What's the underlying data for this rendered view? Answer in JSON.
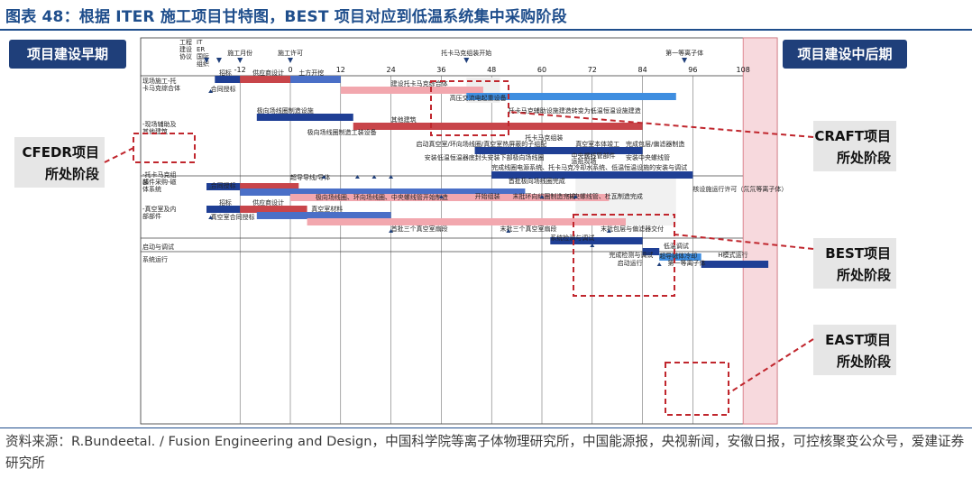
{
  "figure": {
    "title": "图表 48：根据 ITER 施工项目甘特图，BEST 项目对应到低温系统集中采购阶段",
    "source": "资料来源：R.Bundeetal. / Fusion Engineering and Design，中国科学院等离子体物理研究所，中国能源报，央视新闻，安徽日报，可控核聚变公众号，爱建证券研究所"
  },
  "chart_data": {
    "type": "gantt",
    "x_ticks": [
      -12,
      0,
      12,
      24,
      36,
      48,
      60,
      72,
      84,
      96,
      108
    ],
    "xlim": [
      -24,
      114
    ],
    "milestones_top": [
      {
        "label": "施工月份",
        "x": -12
      },
      {
        "label": "施工许可",
        "x": 0
      },
      {
        "label": "托卡马克组装开始",
        "x": 42
      },
      {
        "label": "第一等离子体",
        "x": 94
      }
    ],
    "top_left_headers": [
      "工程建设协议",
      "ITER国际组织"
    ],
    "phases": [
      "项目建设早期",
      "项目建设中后期"
    ],
    "sections": [
      {
        "label": "现场施工-托卡马克综合体"
      },
      {
        "label": "-现场辅助及其他建筑"
      },
      {
        "label": "-托卡马克组装"
      },
      {
        "label": "部件采购-磁体系统"
      },
      {
        "label": "-真空室及内部部件"
      },
      {
        "label": "启动与调试"
      },
      {
        "label": "系统运行"
      }
    ],
    "bars": [
      {
        "row": 0,
        "start": -18,
        "end": -12,
        "color": "navy"
      },
      {
        "row": 0,
        "start": -12,
        "end": 0,
        "color": "red"
      },
      {
        "row": 0,
        "start": 0,
        "end": 12,
        "color": "blue"
      },
      {
        "row": 0,
        "start": 12,
        "end": 46,
        "color": "pink"
      },
      {
        "row": 0,
        "start": 42,
        "end": 92,
        "color": "lightblue"
      },
      {
        "row": 1,
        "start": -8,
        "end": 15,
        "color": "navy"
      },
      {
        "row": 1,
        "start": 15,
        "end": 84,
        "color": "red"
      },
      {
        "row": 2,
        "start": 44,
        "end": 84,
        "color": "navy"
      },
      {
        "row": 3,
        "start": 48,
        "end": 96,
        "color": "navy"
      },
      {
        "row": 4,
        "start": -20,
        "end": -12,
        "color": "navy"
      },
      {
        "row": 4,
        "start": -12,
        "end": 2,
        "color": "red"
      },
      {
        "row": 4,
        "start": -12,
        "end": 56,
        "color": "blue"
      },
      {
        "row": 4,
        "start": 0,
        "end": 76,
        "color": "pink"
      },
      {
        "row": 5,
        "start": -20,
        "end": -12,
        "color": "navy"
      },
      {
        "row": 5,
        "start": -12,
        "end": 4,
        "color": "red"
      },
      {
        "row": 5,
        "start": -8,
        "end": 24,
        "color": "blue"
      },
      {
        "row": 5,
        "start": 4,
        "end": 80,
        "color": "pink"
      },
      {
        "row": 6,
        "start": 62,
        "end": 84,
        "color": "navy"
      },
      {
        "row": 7,
        "start": 84,
        "end": 88,
        "color": "navy"
      },
      {
        "row": 7,
        "start": 88,
        "end": 98,
        "color": "lightblue"
      },
      {
        "row": 8,
        "start": 98,
        "end": 114,
        "color": "navy"
      }
    ],
    "annotations": [
      {
        "text": "招标",
        "x": -17,
        "row": 0
      },
      {
        "text": "供应商设计",
        "x": -9,
        "row": 0
      },
      {
        "text": "土方开挖",
        "x": 2,
        "row": 0
      },
      {
        "text": "合同授标",
        "x": -19,
        "row": 0.9
      },
      {
        "text": "建设托卡马克综合体",
        "x": 24,
        "row": 0.6
      },
      {
        "text": "高压交流电起重设备",
        "x": 38,
        "row": 1.4
      },
      {
        "text": "极向场线圈制造设施",
        "x": -8,
        "row": 2.1
      },
      {
        "text": "托卡马克辅助设施建造转变为低温恒温设施建造",
        "x": 52,
        "row": 2.1
      },
      {
        "text": "其他建筑",
        "x": 24,
        "row": 2.6
      },
      {
        "text": "极向场线圈制造工装设备",
        "x": 4,
        "row": 3.3
      },
      {
        "text": "托卡马克组装",
        "x": 56,
        "row": 3.6
      },
      {
        "text": "启动真空室/环向场线圈/真空室热屏蔽的子组配",
        "x": 30,
        "row": 3.95
      },
      {
        "text": "真空室本体竣工",
        "x": 68,
        "row": 3.95
      },
      {
        "text": "完成包层/偏滤器制造",
        "x": 80,
        "row": 3.95
      },
      {
        "text": "安装低温恒温器底封头",
        "x": 32,
        "row": 4.7
      },
      {
        "text": "安装下部极向场线圈",
        "x": 47,
        "row": 4.7
      },
      {
        "text": "中央螺线管部件",
        "x": 67,
        "row": 4.6
      },
      {
        "text": "运抵现场",
        "x": 67,
        "row": 4.9
      },
      {
        "text": "安装中央螺线管",
        "x": 80,
        "row": 4.7
      },
      {
        "text": "完成线圈电源系统、托卡马克冷却水系统、低温恒温设施的安装与调试",
        "x": 48,
        "row": 5.25
      },
      {
        "text": "超导导线/导体",
        "x": 0,
        "row": 5.8
      },
      {
        "text": "首批极向场线圈完成",
        "x": 52,
        "row": 6.0
      },
      {
        "text": "合同授标",
        "x": -19,
        "row": 6.25
      },
      {
        "text": "核设施运行许可（氘氘等离子体）",
        "x": 96,
        "row": 6.45
      },
      {
        "text": "极向场线圈、环向场线圈、中央螺线管开始制造",
        "x": 6,
        "row": 6.9
      },
      {
        "text": "开始组装",
        "x": 44,
        "row": 6.85
      },
      {
        "text": "末批环向线圈制造完成",
        "x": 53,
        "row": 6.85
      },
      {
        "text": "中央螺线管、杜瓦制造完成",
        "x": 66,
        "row": 6.85
      },
      {
        "text": "招标",
        "x": -17,
        "row": 7.2
      },
      {
        "text": "供应商设计",
        "x": -9,
        "row": 7.2
      },
      {
        "text": "真空室材料",
        "x": 5,
        "row": 7.55
      },
      {
        "text": "真空室合同授标",
        "x": -19,
        "row": 8.0
      },
      {
        "text": "首批三个真空室扇段",
        "x": 24,
        "row": 8.65
      },
      {
        "text": "末批三个真空室扇段",
        "x": 50,
        "row": 8.65
      },
      {
        "text": "末批包层与偏滤器交付",
        "x": 74,
        "row": 8.65
      },
      {
        "text": "系统检测与调试",
        "x": 62,
        "row": 9.15
      },
      {
        "text": "低温调试",
        "x": 89,
        "row": 9.6
      },
      {
        "text": "完成检测与调试",
        "x": 76,
        "row": 10.1
      },
      {
        "text": "超导磁体冷却",
        "x": 88,
        "row": 10.15
      },
      {
        "text": "H模式运行",
        "x": 102,
        "row": 10.1
      },
      {
        "text": "启动运行",
        "x": 78,
        "row": 10.55
      },
      {
        "text": "第一等离子体",
        "x": 90,
        "row": 10.55
      }
    ]
  },
  "callouts": [
    {
      "label": "CFEDR项目所处阶段"
    },
    {
      "label": "CRAFT项目所处阶段"
    },
    {
      "label": "BEST项目所处阶段"
    },
    {
      "label": "EAST项目所处阶段"
    }
  ]
}
